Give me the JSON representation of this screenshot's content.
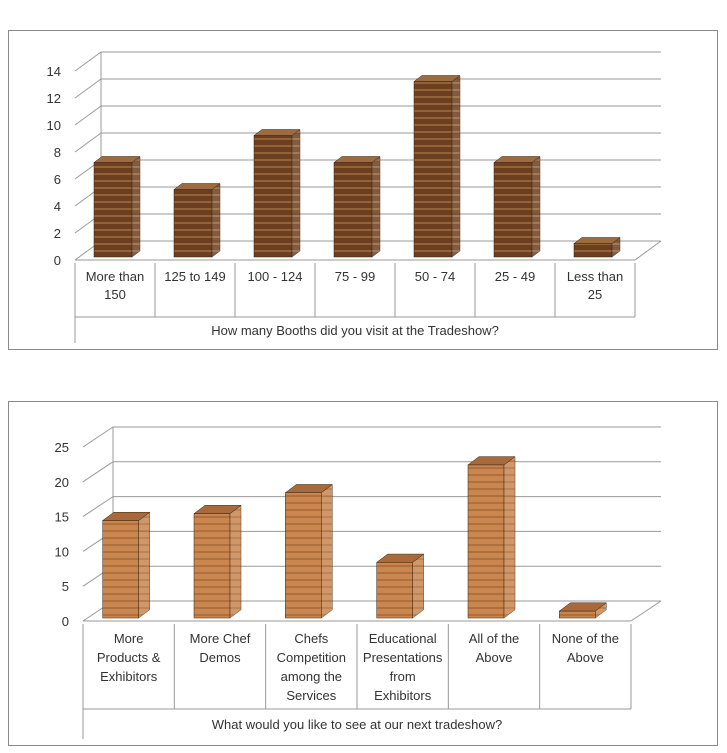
{
  "chart_data": [
    {
      "type": "bar",
      "title": "",
      "xlabel": "How many Booths did you visit at the Tradeshow?",
      "ylabel": "",
      "categories": [
        "More than 150",
        "125 to 149",
        "100 - 124",
        "75 - 99",
        "50 - 74",
        "25 - 49",
        "Less than 25"
      ],
      "category_lines": [
        [
          "More than",
          "150"
        ],
        [
          "125 to 149"
        ],
        [
          "100 - 124"
        ],
        [
          "75 - 99"
        ],
        [
          "50 - 74"
        ],
        [
          "25 - 49"
        ],
        [
          "Less than",
          "25"
        ]
      ],
      "values": [
        7,
        5,
        9,
        7,
        13,
        7,
        1
      ],
      "ylim": [
        0,
        14
      ],
      "yticks": [
        0,
        2,
        4,
        6,
        8,
        10,
        12,
        14
      ],
      "ytick_labels": [
        "0",
        "2",
        "4",
        "6",
        "8",
        "10",
        "12",
        "14"
      ],
      "grid": true,
      "legend": "none",
      "style": "3d-column",
      "bar_color": "#6b3f1f",
      "bar_stripe_color": "#9c6b3f",
      "gridline_color": "#9a9a9a"
    },
    {
      "type": "bar",
      "title": "",
      "xlabel": "What would you like to see at our next tradeshow?",
      "ylabel": "",
      "categories": [
        "More Products & Exhibitors",
        "More Chef Demos",
        "Chefs Competition among the Services",
        "Educational Presentations from Exhibitors",
        "All of the Above",
        "None of the Above"
      ],
      "category_lines": [
        [
          "More",
          "Products &",
          "Exhibitors"
        ],
        [
          "More Chef",
          "Demos"
        ],
        [
          "Chefs",
          "Competition",
          "among the",
          "Services"
        ],
        [
          "Educational",
          "Presentations",
          "from",
          "Exhibitors"
        ],
        [
          "All of the",
          "Above"
        ],
        [
          "None of the",
          "Above"
        ]
      ],
      "values": [
        14,
        15,
        18,
        8,
        22,
        1
      ],
      "ylim": [
        0,
        25
      ],
      "yticks": [
        0,
        5,
        10,
        15,
        20,
        25
      ],
      "ytick_labels": [
        "0",
        "5",
        "10",
        "15",
        "20",
        "25"
      ],
      "grid": true,
      "legend": "none",
      "style": "3d-column",
      "bar_color": "#c9864f",
      "bar_stripe_color": "#a86a3a",
      "gridline_color": "#9a9a9a"
    }
  ]
}
